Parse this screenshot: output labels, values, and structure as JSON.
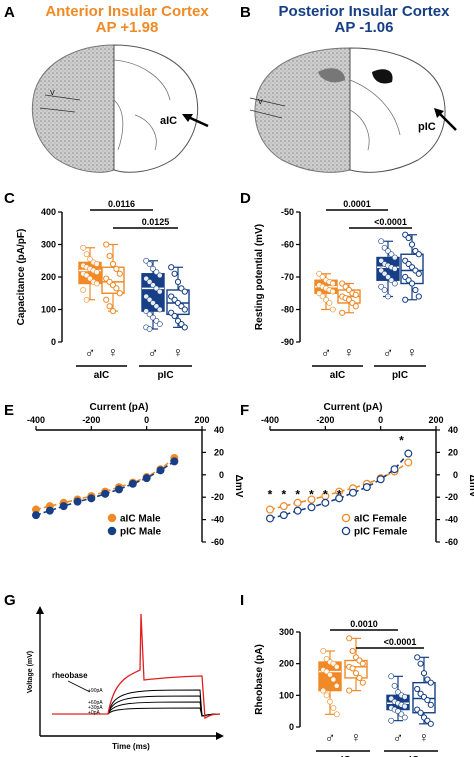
{
  "colors": {
    "orange": "#ef8a27",
    "blue": "#163f86",
    "red": "#e02020",
    "black": "#000000"
  },
  "panels": {
    "A": {
      "letter": "A",
      "title1": "Anterior Insular Cortex",
      "title2": "AP +1.98",
      "region_label": "aIC",
      "layer_label": "V"
    },
    "B": {
      "letter": "B",
      "title1": "Posterior Insular Cortex",
      "title2": "AP -1.06",
      "region_label": "pIC",
      "layer_label": "V"
    },
    "C": {
      "letter": "C"
    },
    "D": {
      "letter": "D"
    },
    "E": {
      "letter": "E"
    },
    "F": {
      "letter": "F"
    },
    "G": {
      "letter": "G"
    },
    "I": {
      "letter": "I"
    }
  },
  "chart_data": [
    {
      "id": "C",
      "type": "box",
      "ylabel": "Capacitance (pA/pF)",
      "ylim": [
        0,
        400
      ],
      "yticks": [
        0,
        100,
        200,
        300,
        400
      ],
      "groups": [
        {
          "sex": "male",
          "region": "aIC",
          "color": "orange",
          "filled": true,
          "q1": 180,
          "median": 220,
          "q3": 245,
          "min": 130,
          "max": 290,
          "points": [
            290,
            270,
            255,
            245,
            240,
            235,
            230,
            225,
            220,
            215,
            210,
            205,
            195,
            185,
            180,
            160,
            130
          ]
        },
        {
          "sex": "female",
          "region": "aIC",
          "color": "orange",
          "filled": false,
          "q1": 150,
          "median": 185,
          "q3": 230,
          "min": 95,
          "max": 300,
          "points": [
            300,
            265,
            240,
            225,
            210,
            195,
            185,
            175,
            165,
            150,
            130,
            110,
            95
          ]
        },
        {
          "sex": "male",
          "region": "pIC",
          "color": "blue",
          "filled": true,
          "q1": 95,
          "median": 165,
          "q3": 210,
          "min": 40,
          "max": 250,
          "points": [
            250,
            240,
            225,
            215,
            205,
            195,
            185,
            175,
            165,
            155,
            140,
            130,
            120,
            110,
            100,
            95,
            85,
            75,
            65,
            55,
            45,
            40
          ]
        },
        {
          "sex": "female",
          "region": "pIC",
          "color": "blue",
          "filled": false,
          "q1": 85,
          "median": 120,
          "q3": 160,
          "min": 45,
          "max": 230,
          "points": [
            230,
            210,
            185,
            165,
            155,
            140,
            130,
            120,
            110,
            100,
            90,
            80,
            65,
            55,
            45
          ]
        }
      ],
      "comparisons": [
        {
          "label": "0.0116",
          "from": 0,
          "to": 2
        },
        {
          "label": "0.0125",
          "from": 1,
          "to": 3
        }
      ],
      "sex_symbols": [
        "♂",
        "♀",
        "♂",
        "♀"
      ],
      "region_labels": [
        "aIC",
        "pIC"
      ]
    },
    {
      "id": "D",
      "type": "box",
      "ylabel": "Resting potential (mV)",
      "ylim": [
        -90,
        -50
      ],
      "yticks": [
        -90,
        -80,
        -70,
        -60,
        -50
      ],
      "groups": [
        {
          "sex": "male",
          "region": "aIC",
          "color": "orange",
          "filled": true,
          "q1": -75,
          "median": -73,
          "q3": -71,
          "min": -80,
          "max": -69,
          "points": [
            -69,
            -70,
            -71,
            -71.5,
            -72,
            -72.5,
            -73,
            -73.5,
            -74,
            -74.5,
            -75,
            -76,
            -77,
            -78,
            -80
          ]
        },
        {
          "sex": "female",
          "region": "aIC",
          "color": "orange",
          "filled": false,
          "q1": -78,
          "median": -76,
          "q3": -74,
          "min": -81,
          "max": -72,
          "points": [
            -72,
            -73,
            -74,
            -75,
            -75.5,
            -76,
            -76.5,
            -77,
            -78,
            -79,
            -81
          ]
        },
        {
          "sex": "male",
          "region": "pIC",
          "color": "blue",
          "filled": true,
          "q1": -71,
          "median": -67,
          "q3": -64,
          "min": -76,
          "max": -59,
          "points": [
            -59,
            -61,
            -62,
            -63,
            -64,
            -65,
            -66,
            -66.5,
            -67,
            -67.5,
            -68,
            -69,
            -70,
            -71,
            -72,
            -73,
            -74,
            -76
          ]
        },
        {
          "sex": "female",
          "region": "pIC",
          "color": "blue",
          "filled": false,
          "q1": -72,
          "median": -68,
          "q3": -63,
          "min": -77,
          "max": -57,
          "points": [
            -57,
            -58,
            -60,
            -62,
            -63,
            -65,
            -66,
            -67,
            -68,
            -69,
            -70,
            -71,
            -72,
            -74,
            -76,
            -77
          ]
        }
      ],
      "comparisons": [
        {
          "label": "0.0001",
          "from": 0,
          "to": 2
        },
        {
          "label": "<0.0001",
          "from": 1,
          "to": 3
        }
      ],
      "sex_symbols": [
        "♂",
        "♀",
        "♂",
        "♀"
      ],
      "region_labels": [
        "aIC",
        "pIC"
      ]
    },
    {
      "id": "E",
      "type": "line",
      "xlabel": "Current (pA)",
      "ylabel": "ΔmV",
      "xlim": [
        -400,
        200
      ],
      "ylim": [
        -60,
        40
      ],
      "xticks": [
        -400,
        -200,
        0,
        200
      ],
      "yticks": [
        -60,
        -40,
        -20,
        0,
        20,
        40
      ],
      "x": [
        -400,
        -350,
        -300,
        -250,
        -200,
        -150,
        -100,
        -50,
        0,
        50,
        100
      ],
      "series": [
        {
          "name": "aIC Male",
          "color": "orange",
          "filled": true,
          "values": [
            -31,
            -28,
            -25,
            -22,
            -19,
            -15,
            -11,
            -7,
            -2,
            5,
            15
          ]
        },
        {
          "name": "pIC Male",
          "color": "blue",
          "filled": true,
          "values": [
            -36,
            -32,
            -28,
            -24,
            -21,
            -17,
            -13,
            -8,
            -3,
            4,
            12
          ]
        }
      ]
    },
    {
      "id": "F",
      "type": "line",
      "xlabel": "Current (pA)",
      "ylabel": "ΔmV",
      "xlim": [
        -400,
        200
      ],
      "ylim": [
        -60,
        40
      ],
      "xticks": [
        -400,
        -200,
        0,
        200
      ],
      "yticks": [
        -60,
        -40,
        -20,
        0,
        20,
        40
      ],
      "x": [
        -400,
        -350,
        -300,
        -250,
        -200,
        -150,
        -100,
        -50,
        0,
        50,
        100
      ],
      "series": [
        {
          "name": "aIC Female",
          "color": "orange",
          "filled": false,
          "values": [
            -31,
            -28,
            -25,
            -22,
            -19,
            -15,
            -12,
            -8,
            -3,
            3,
            11
          ]
        },
        {
          "name": "pIC Female",
          "color": "blue",
          "filled": false,
          "values": [
            -39,
            -36,
            -32,
            -29,
            -25,
            -21,
            -16,
            -11,
            -4,
            5,
            19
          ]
        }
      ],
      "significance": {
        "marker": "*",
        "x": [
          -400,
          -350,
          -300,
          -250,
          -200,
          -150,
          75
        ]
      }
    },
    {
      "id": "G",
      "type": "trace",
      "xlabel": "Time (ms)",
      "ylabel": "Voltage (mV)",
      "annotations": [
        "rheobase",
        "+90pA",
        "+60pA",
        "+30pA",
        "+0pA"
      ]
    },
    {
      "id": "I",
      "type": "box",
      "ylabel": "Rheobase (pA)",
      "ylim": [
        0,
        300
      ],
      "yticks": [
        0,
        100,
        200,
        300
      ],
      "groups": [
        {
          "sex": "male",
          "region": "aIC",
          "color": "orange",
          "filled": true,
          "q1": 115,
          "median": 175,
          "q3": 205,
          "min": 40,
          "max": 240,
          "points": [
            240,
            215,
            205,
            200,
            190,
            180,
            175,
            165,
            150,
            130,
            115,
            100,
            80,
            60,
            40
          ]
        },
        {
          "sex": "female",
          "region": "aIC",
          "color": "orange",
          "filled": false,
          "q1": 155,
          "median": 190,
          "q3": 210,
          "min": 115,
          "max": 280,
          "points": [
            280,
            240,
            220,
            210,
            200,
            190,
            185,
            170,
            155,
            140,
            115
          ]
        },
        {
          "sex": "male",
          "region": "pIC",
          "color": "blue",
          "filled": true,
          "q1": 55,
          "median": 75,
          "q3": 100,
          "min": 20,
          "max": 160,
          "points": [
            160,
            130,
            110,
            100,
            95,
            90,
            80,
            75,
            70,
            65,
            60,
            55,
            50,
            40,
            30,
            20
          ]
        },
        {
          "sex": "female",
          "region": "pIC",
          "color": "blue",
          "filled": false,
          "q1": 45,
          "median": 90,
          "q3": 140,
          "min": 10,
          "max": 220,
          "points": [
            220,
            200,
            170,
            150,
            140,
            120,
            105,
            95,
            85,
            70,
            55,
            45,
            30,
            20,
            10
          ]
        }
      ],
      "comparisons": [
        {
          "label": "0.0010",
          "from": 0,
          "to": 2
        },
        {
          "label": "<0.0001",
          "from": 1,
          "to": 3
        }
      ],
      "sex_symbols": [
        "♂",
        "♀",
        "♂",
        "♀"
      ],
      "region_labels": [
        "aIC",
        "pIC"
      ]
    }
  ]
}
